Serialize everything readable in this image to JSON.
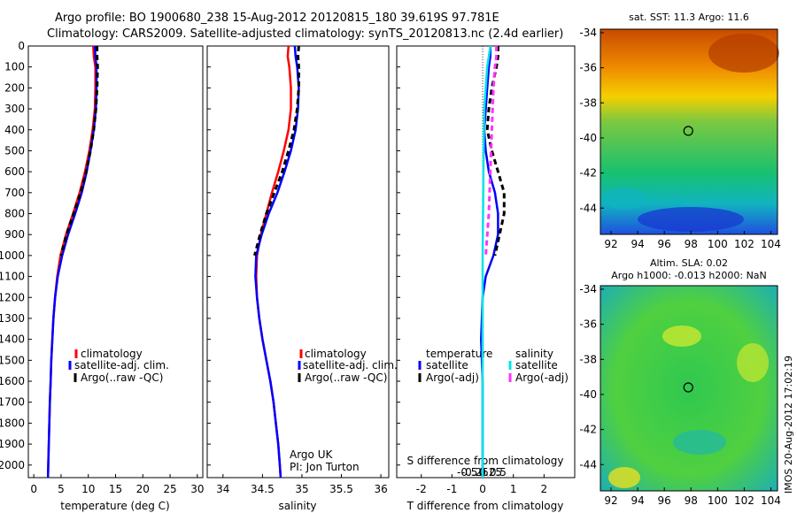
{
  "header": {
    "line1": "Argo profile: BO 1900680_238 15-Aug-2012 20120815_180 39.619S 97.781E",
    "line2": "Climatology: CARS2009. Satellite-adjusted climatology: synTS_20120813.nc (2.4d earlier)"
  },
  "side_note": "IMOS 20-Aug-2012 17:02:19",
  "colors": {
    "climatology": "#ff0000",
    "satellite": "#0000ff",
    "argo": "#000000",
    "sal_satellite": "#00e5e5",
    "sal_argo": "#ff33ff"
  },
  "chart_data": [
    {
      "id": "temperature",
      "type": "line",
      "xlabel": "temperature (deg C)",
      "xlim": [
        -1,
        31
      ],
      "xticks": [
        0,
        5,
        10,
        15,
        20,
        25,
        30
      ],
      "ylim": [
        2060,
        0
      ],
      "yticks": [
        0,
        100,
        200,
        300,
        400,
        500,
        600,
        700,
        800,
        900,
        1000,
        1100,
        1200,
        1300,
        1400,
        1500,
        1600,
        1700,
        1800,
        1900,
        2000
      ],
      "legend": [
        "climatology",
        "satellite-adj. clim.",
        "Argo(..raw -QC)"
      ],
      "series": [
        {
          "key": "climatology",
          "points": [
            [
              10.9,
              0
            ],
            [
              11.0,
              50
            ],
            [
              11.3,
              100
            ],
            [
              11.3,
              200
            ],
            [
              11.2,
              300
            ],
            [
              10.8,
              400
            ],
            [
              10.2,
              500
            ],
            [
              9.4,
              600
            ],
            [
              8.4,
              700
            ],
            [
              7.2,
              800
            ],
            [
              5.9,
              900
            ],
            [
              4.9,
              1000
            ],
            [
              4.3,
              1100
            ],
            [
              3.9,
              1200
            ],
            [
              3.6,
              1300
            ],
            [
              3.4,
              1400
            ],
            [
              3.2,
              1500
            ],
            [
              3.1,
              1600
            ],
            [
              2.95,
              1700
            ],
            [
              2.85,
              1800
            ],
            [
              2.75,
              1900
            ],
            [
              2.65,
              2000
            ],
            [
              2.6,
              2060
            ]
          ]
        },
        {
          "key": "satellite",
          "points": [
            [
              11.2,
              0
            ],
            [
              11.3,
              50
            ],
            [
              11.5,
              100
            ],
            [
              11.5,
              200
            ],
            [
              11.4,
              300
            ],
            [
              11.0,
              400
            ],
            [
              10.4,
              500
            ],
            [
              9.7,
              600
            ],
            [
              8.8,
              700
            ],
            [
              7.6,
              800
            ],
            [
              6.3,
              900
            ],
            [
              5.2,
              1000
            ],
            [
              4.4,
              1100
            ],
            [
              3.9,
              1200
            ],
            [
              3.6,
              1300
            ],
            [
              3.4,
              1400
            ],
            [
              3.2,
              1500
            ],
            [
              3.1,
              1600
            ],
            [
              2.95,
              1700
            ],
            [
              2.85,
              1800
            ],
            [
              2.75,
              1900
            ],
            [
              2.65,
              2000
            ],
            [
              2.6,
              2060
            ]
          ]
        },
        {
          "key": "argo",
          "points": [
            [
              11.6,
              0
            ],
            [
              11.6,
              50
            ],
            [
              11.7,
              100
            ],
            [
              11.6,
              200
            ],
            [
              11.4,
              300
            ],
            [
              11.0,
              400
            ],
            [
              10.4,
              500
            ],
            [
              9.6,
              600
            ],
            [
              8.6,
              700
            ],
            [
              7.3,
              800
            ],
            [
              6.0,
              900
            ],
            [
              5.0,
              1000
            ]
          ]
        }
      ]
    },
    {
      "id": "salinity",
      "type": "line",
      "xlabel": "salinity",
      "xlim": [
        33.8,
        36.1
      ],
      "xticks": [
        34,
        34.5,
        35,
        35.5,
        36
      ],
      "ylim": [
        2060,
        0
      ],
      "legend": [
        "climatology",
        "satellite-adj. clim.",
        "Argo(..raw -QC)"
      ],
      "annotation": [
        "Argo UK",
        "PI: Jon Turton"
      ],
      "series": [
        {
          "key": "climatology",
          "points": [
            [
              34.83,
              0
            ],
            [
              34.82,
              50
            ],
            [
              34.84,
              100
            ],
            [
              34.86,
              200
            ],
            [
              34.86,
              300
            ],
            [
              34.83,
              400
            ],
            [
              34.77,
              500
            ],
            [
              34.7,
              600
            ],
            [
              34.62,
              700
            ],
            [
              34.55,
              800
            ],
            [
              34.48,
              900
            ],
            [
              34.43,
              1000
            ],
            [
              34.42,
              1100
            ],
            [
              34.43,
              1200
            ],
            [
              34.46,
              1300
            ],
            [
              34.5,
              1400
            ],
            [
              34.55,
              1500
            ],
            [
              34.6,
              1600
            ],
            [
              34.64,
              1700
            ],
            [
              34.67,
              1800
            ],
            [
              34.7,
              1900
            ],
            [
              34.72,
              2000
            ],
            [
              34.73,
              2060
            ]
          ]
        },
        {
          "key": "satellite",
          "points": [
            [
              34.91,
              0
            ],
            [
              34.92,
              50
            ],
            [
              34.94,
              100
            ],
            [
              34.96,
              200
            ],
            [
              34.95,
              300
            ],
            [
              34.92,
              400
            ],
            [
              34.86,
              500
            ],
            [
              34.78,
              600
            ],
            [
              34.69,
              700
            ],
            [
              34.58,
              800
            ],
            [
              34.49,
              900
            ],
            [
              34.42,
              1000
            ],
            [
              34.41,
              1100
            ],
            [
              34.43,
              1200
            ],
            [
              34.46,
              1300
            ],
            [
              34.5,
              1400
            ],
            [
              34.55,
              1500
            ],
            [
              34.6,
              1600
            ],
            [
              34.64,
              1700
            ],
            [
              34.67,
              1800
            ],
            [
              34.7,
              1900
            ],
            [
              34.72,
              2000
            ],
            [
              34.73,
              2060
            ]
          ]
        },
        {
          "key": "argo",
          "points": [
            [
              34.96,
              0
            ],
            [
              34.95,
              50
            ],
            [
              34.96,
              100
            ],
            [
              34.96,
              200
            ],
            [
              34.94,
              300
            ],
            [
              34.9,
              400
            ],
            [
              34.83,
              500
            ],
            [
              34.75,
              600
            ],
            [
              34.65,
              700
            ],
            [
              34.55,
              800
            ],
            [
              34.47,
              900
            ],
            [
              34.4,
              1000
            ]
          ]
        }
      ]
    },
    {
      "id": "difference",
      "type": "line",
      "xlabel": "T difference from climatology",
      "xlabel2": "S difference from climatology",
      "xlim": [
        -2.8,
        3.0
      ],
      "xticks": [
        -2,
        -1,
        0,
        1,
        2
      ],
      "sticks": [
        -0.5,
        -0.25,
        0,
        0.25,
        0.5
      ],
      "sticklabels": [
        "-0.5",
        "-0.25",
        "0",
        "0.25",
        "0.5"
      ],
      "ylim": [
        2060,
        0
      ],
      "legend_temp_title": "temperature",
      "legend_sal_title": "salinity",
      "legend_temp": [
        "satellite",
        "Argo(-adj)"
      ],
      "legend_sal": [
        "satellite",
        "Argo(-adj)"
      ],
      "series": [
        {
          "key": "satellite",
          "points": [
            [
              0.25,
              0
            ],
            [
              0.25,
              50
            ],
            [
              0.2,
              100
            ],
            [
              0.15,
              200
            ],
            [
              0.1,
              300
            ],
            [
              0.05,
              400
            ],
            [
              0.1,
              500
            ],
            [
              0.2,
              600
            ],
            [
              0.4,
              700
            ],
            [
              0.5,
              800
            ],
            [
              0.5,
              900
            ],
            [
              0.35,
              1000
            ],
            [
              0.1,
              1100
            ],
            [
              0,
              1200
            ],
            [
              -0.05,
              1400
            ],
            [
              0,
              1600
            ],
            [
              0,
              2060
            ]
          ]
        },
        {
          "key": "argo",
          "points": [
            [
              0.5,
              0
            ],
            [
              0.5,
              50
            ],
            [
              0.45,
              100
            ],
            [
              0.3,
              200
            ],
            [
              0.2,
              300
            ],
            [
              0.15,
              400
            ],
            [
              0.3,
              500
            ],
            [
              0.5,
              600
            ],
            [
              0.7,
              700
            ],
            [
              0.7,
              800
            ],
            [
              0.55,
              900
            ],
            [
              0.4,
              1000
            ]
          ]
        },
        {
          "key": "sal_satellite",
          "points": [
            [
              0.25,
              0
            ],
            [
              0.2,
              50
            ],
            [
              0.15,
              100
            ],
            [
              0.1,
              200
            ],
            [
              0.05,
              300
            ],
            [
              0.03,
              500
            ],
            [
              0.02,
              700
            ],
            [
              0,
              1000
            ],
            [
              0,
              1300
            ],
            [
              0,
              2060
            ]
          ]
        },
        {
          "key": "sal_argo",
          "points": [
            [
              0.45,
              0
            ],
            [
              0.45,
              50
            ],
            [
              0.4,
              100
            ],
            [
              0.35,
              200
            ],
            [
              0.3,
              400
            ],
            [
              0.25,
              600
            ],
            [
              0.2,
              800
            ],
            [
              0.1,
              1000
            ]
          ]
        }
      ]
    }
  ],
  "maps": [
    {
      "id": "sst_map",
      "title": "sat. SST: 11.3 Argo: 11.6",
      "xlim": [
        91.2,
        104.5
      ],
      "ylim": [
        -45.5,
        -33.8
      ],
      "xticks": [
        92,
        94,
        96,
        98,
        100,
        102,
        104
      ],
      "yticks": [
        -34,
        -36,
        -38,
        -40,
        -42,
        -44
      ],
      "marker": [
        97.8,
        -39.6
      ]
    },
    {
      "id": "sla_map",
      "title": "Altim. SLA: 0.02",
      "title2": "Argo h1000: -0.013 h2000: NaN",
      "xlim": [
        91.2,
        104.5
      ],
      "ylim": [
        -45.5,
        -33.8
      ],
      "xticks": [
        92,
        94,
        96,
        98,
        100,
        102,
        104
      ],
      "yticks": [
        -34,
        -36,
        -38,
        -40,
        -42,
        -44
      ],
      "marker": [
        97.8,
        -39.6
      ]
    }
  ]
}
